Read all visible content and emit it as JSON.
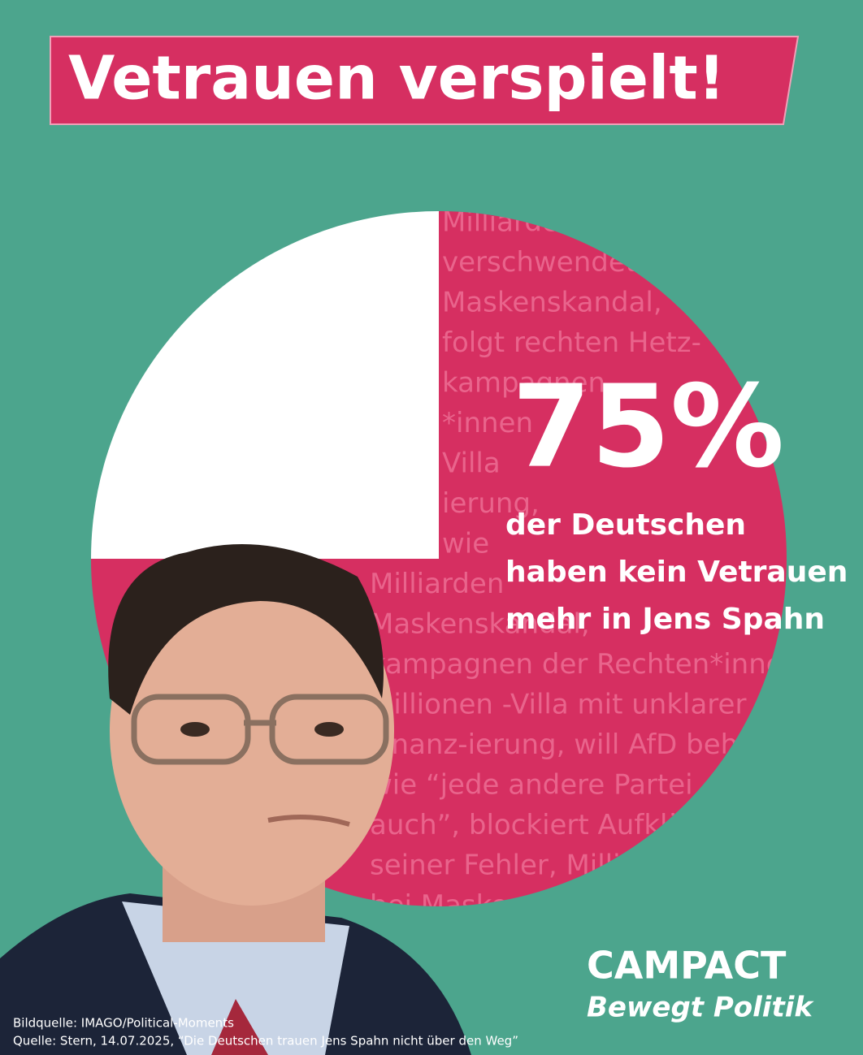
{
  "chart_data": {
    "type": "pie",
    "title": "Vetrauen verspielt!",
    "values": [
      75,
      25
    ],
    "value_labels": [
      "75%",
      null
    ],
    "colors": [
      "#d62f61",
      "#ffffff"
    ],
    "annotation": [
      "der Deutschen",
      "haben kein Vetrauen",
      "mehr in Jens Spahn"
    ],
    "background_text": [
      "Milliarden",
      "verschwendet,",
      "Maskenskandal,",
      "folgt rechten Hetz-",
      "kampagnen",
      "*innen",
      "Villa",
      "ierung,",
      "wie",
      "Milliarden",
      "Maskenskandal,",
      "kampagnen der Rechten*innen",
      "Millionen -Villa mit unklarer",
      "Finanz-ierung, will AfD behandeln",
      "wie “jede andere Partei",
      "auch”, blockiert Aufklärung",
      "seiner Fehler, Milliarden",
      "bei Maskenskandal"
    ],
    "source": [
      "Bildquelle: IMAGO/Political-Moments",
      "Quelle: Stern, 14.07.2025, “Die Deutschen trauen Jens Spahn nicht über den Weg”"
    ],
    "logo": [
      "CAMPACT",
      "Bewegt Politik"
    ]
  }
}
